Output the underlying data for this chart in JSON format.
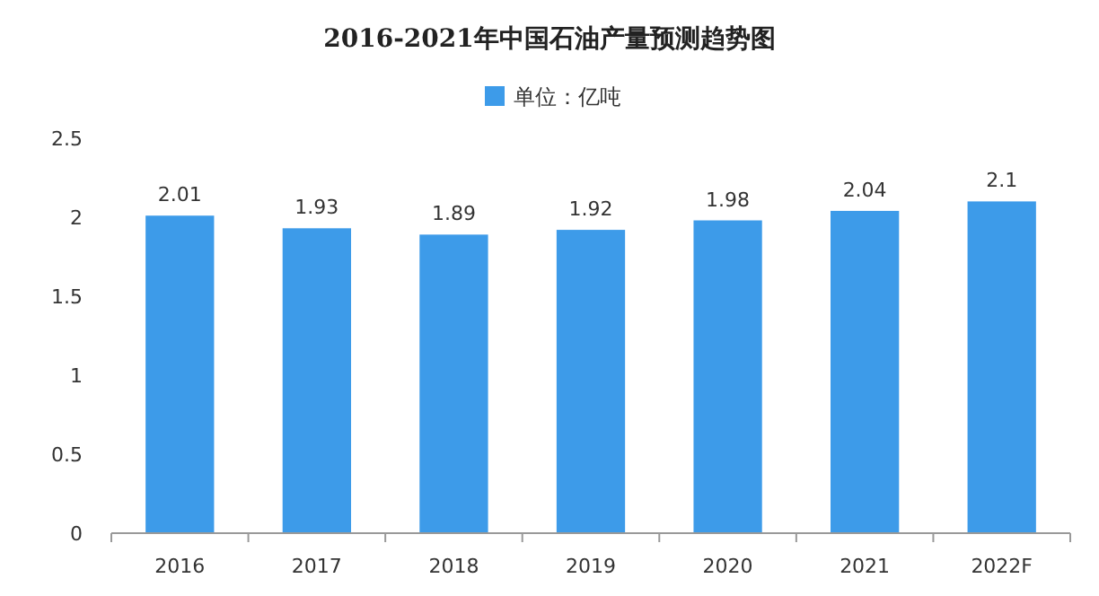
{
  "chart_data": {
    "type": "bar",
    "title": "2016-2021年中国石油产量预测趋势图",
    "categories": [
      "2016",
      "2017",
      "2018",
      "2019",
      "2020",
      "2021",
      "2022F"
    ],
    "series": [
      {
        "name": "单位：亿吨",
        "color": "#3d9be9",
        "values": [
          2.01,
          1.93,
          1.89,
          1.92,
          1.98,
          2.04,
          2.1
        ]
      }
    ],
    "ylim": [
      0,
      2.5
    ],
    "yticks": [
      0,
      0.5,
      1,
      1.5,
      2,
      2.5
    ],
    "data_labels": true,
    "legend": "top",
    "grid": false
  }
}
